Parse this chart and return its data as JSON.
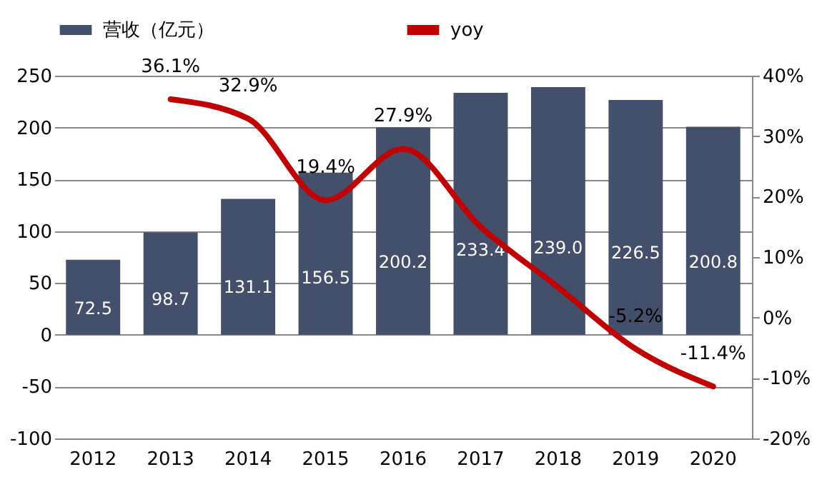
{
  "chart_data": {
    "type": "bar",
    "categories": [
      "2012",
      "2013",
      "2014",
      "2015",
      "2016",
      "2017",
      "2018",
      "2019",
      "2020"
    ],
    "series": [
      {
        "name": "营收（亿元）",
        "color": "#434f6b",
        "values": [
          72.5,
          98.7,
          131.1,
          156.5,
          200.2,
          233.4,
          239.0,
          226.5,
          200.8
        ],
        "value_labels": [
          "72.5",
          "98.7",
          "131.1",
          "156.5",
          "200.2",
          "233.4",
          "239.0",
          "226.5",
          "200.8"
        ]
      },
      {
        "name": "yoy",
        "type": "line",
        "axis": "y2",
        "color": "#c00000",
        "values": [
          null,
          36.1,
          32.9,
          19.4,
          27.9,
          15,
          5,
          -5.2,
          -11.4
        ],
        "value_labels": [
          null,
          "36.1%",
          "32.9%",
          "19.4%",
          "27.9%",
          null,
          null,
          "-5.2%",
          "-11.4%"
        ]
      }
    ],
    "ylim": [
      -100,
      250
    ],
    "yticks": [
      -100,
      -50,
      0,
      50,
      100,
      150,
      200,
      250
    ],
    "y2lim": [
      -20,
      40
    ],
    "y2ticks": [
      {
        "value": -20,
        "label": "-20%"
      },
      {
        "value": -10,
        "label": "-10%"
      },
      {
        "value": 0,
        "label": "0%"
      },
      {
        "value": 10,
        "label": "10%"
      },
      {
        "value": 20,
        "label": "20%"
      },
      {
        "value": 30,
        "label": "30%"
      },
      {
        "value": 40,
        "label": "40%"
      }
    ],
    "grid": "y",
    "legend": "top"
  }
}
